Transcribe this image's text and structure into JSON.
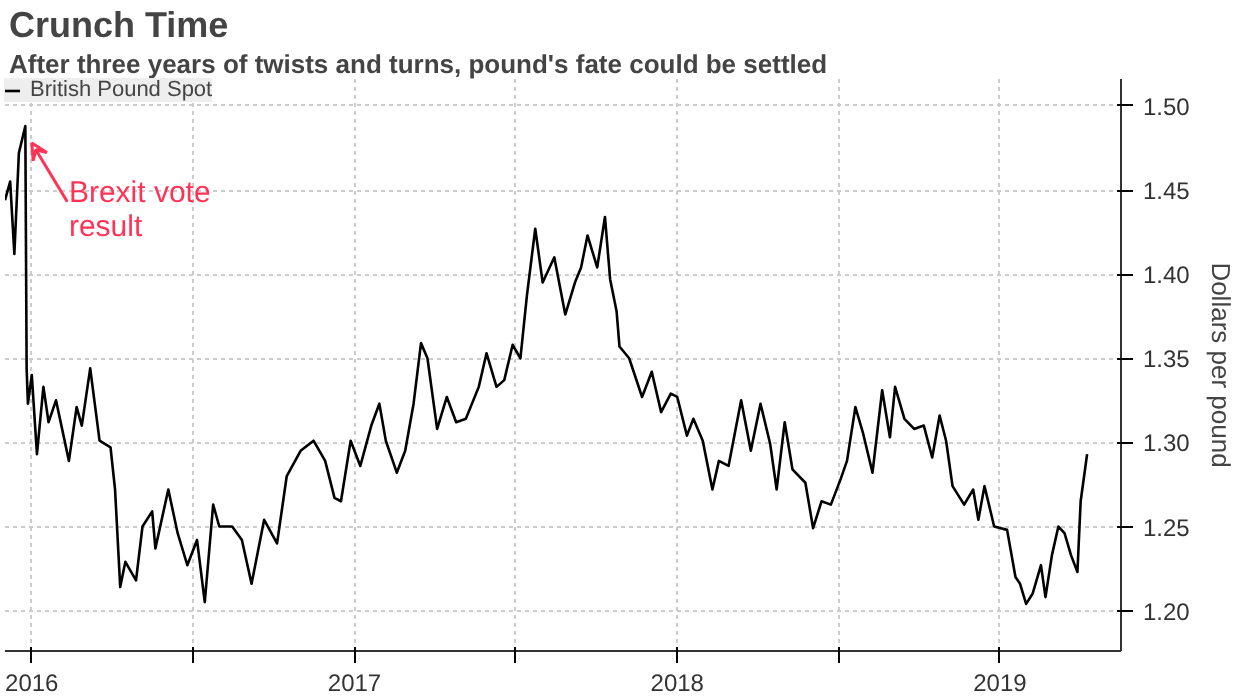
{
  "chart_data": {
    "type": "line",
    "title": "Crunch Time",
    "subtitle": "After three years of twists and turns, pound's fate could be settled",
    "ylabel": "Dollars per pound",
    "xlim": [
      2016.417,
      2019.875
    ],
    "ylim": [
      1.176,
      1.516
    ],
    "xticks": [
      {
        "value": 2016.5,
        "label": "2016"
      },
      {
        "value": 2017,
        "label": null
      },
      {
        "value": 2017.5,
        "label": "2017"
      },
      {
        "value": 2018,
        "label": null
      },
      {
        "value": 2018.5,
        "label": "2018"
      },
      {
        "value": 2019,
        "label": null
      },
      {
        "value": 2019.5,
        "label": "2019"
      }
    ],
    "yticks": [
      {
        "value": 1.2,
        "label": "1.20"
      },
      {
        "value": 1.25,
        "label": "1.25"
      },
      {
        "value": 1.3,
        "label": "1.30"
      },
      {
        "value": 1.35,
        "label": "1.35"
      },
      {
        "value": 1.4,
        "label": "1.40"
      },
      {
        "value": 1.45,
        "label": "1.45"
      },
      {
        "value": 1.5,
        "label": "1.50"
      }
    ],
    "grid": true,
    "legend": "top left",
    "annotations": [
      {
        "text": "Brexit vote result",
        "x": 2016.48,
        "y": 1.488
      }
    ],
    "series": [
      {
        "name": "British Pound Spot",
        "color": "#000000",
        "x": [
          2016.417,
          2016.433,
          2016.446,
          2016.46,
          2016.48,
          2016.484,
          2016.488,
          2016.5,
          2016.516,
          2016.536,
          2016.552,
          2016.575,
          2016.615,
          2016.639,
          2016.655,
          2016.681,
          2016.71,
          2016.744,
          2016.758,
          2016.774,
          2016.79,
          2016.823,
          2016.843,
          2016.873,
          2016.883,
          2016.923,
          2016.952,
          2016.982,
          2017.012,
          2017.036,
          2017.062,
          2017.081,
          2017.121,
          2017.151,
          2017.181,
          2017.22,
          2017.26,
          2017.29,
          2017.333,
          2017.373,
          2017.409,
          2017.438,
          2017.458,
          2017.488,
          2017.518,
          2017.552,
          2017.577,
          2017.597,
          2017.631,
          2017.657,
          2017.683,
          2017.706,
          2017.726,
          2017.756,
          2017.786,
          2017.815,
          2017.845,
          2017.885,
          2017.909,
          2017.94,
          2017.964,
          2017.99,
          2018.014,
          2018.034,
          2018.06,
          2018.083,
          2018.119,
          2018.153,
          2018.183,
          2018.202,
          2018.222,
          2018.252,
          2018.276,
          2018.292,
          2018.312,
          2018.321,
          2018.351,
          2018.391,
          2018.421,
          2018.45,
          2018.48,
          2018.5,
          2018.53,
          2018.55,
          2018.579,
          2018.609,
          2018.629,
          2018.659,
          2018.698,
          2018.728,
          2018.758,
          2018.788,
          2018.808,
          2018.833,
          2018.857,
          2018.897,
          2018.921,
          2018.947,
          2018.976,
          2019.006,
          2019.026,
          2019.052,
          2019.075,
          2019.105,
          2019.135,
          2019.159,
          2019.175,
          2019.204,
          2019.234,
          2019.264,
          2019.29,
          2019.313,
          2019.333,
          2019.353,
          2019.389,
          2019.417,
          2019.433,
          2019.452,
          2019.482,
          2019.522,
          2019.548,
          2019.562,
          2019.581,
          2019.601,
          2019.627,
          2019.641,
          2019.661,
          2019.681,
          2019.7,
          2019.72,
          2019.74,
          2019.75,
          2019.77
        ],
        "values": [
          1.444,
          1.455,
          1.412,
          1.472,
          1.488,
          1.344,
          1.323,
          1.34,
          1.293,
          1.333,
          1.312,
          1.325,
          1.289,
          1.321,
          1.31,
          1.344,
          1.301,
          1.297,
          1.272,
          1.214,
          1.229,
          1.218,
          1.25,
          1.259,
          1.237,
          1.272,
          1.246,
          1.227,
          1.242,
          1.205,
          1.263,
          1.25,
          1.25,
          1.242,
          1.216,
          1.254,
          1.24,
          1.28,
          1.295,
          1.301,
          1.289,
          1.267,
          1.265,
          1.301,
          1.286,
          1.31,
          1.323,
          1.301,
          1.282,
          1.295,
          1.323,
          1.359,
          1.35,
          1.308,
          1.327,
          1.312,
          1.314,
          1.333,
          1.353,
          1.333,
          1.337,
          1.358,
          1.35,
          1.387,
          1.427,
          1.395,
          1.41,
          1.376,
          1.395,
          1.404,
          1.423,
          1.404,
          1.434,
          1.397,
          1.378,
          1.357,
          1.35,
          1.327,
          1.342,
          1.318,
          1.329,
          1.327,
          1.304,
          1.314,
          1.301,
          1.272,
          1.289,
          1.286,
          1.325,
          1.295,
          1.323,
          1.299,
          1.272,
          1.312,
          1.284,
          1.276,
          1.249,
          1.265,
          1.263,
          1.278,
          1.289,
          1.321,
          1.306,
          1.282,
          1.331,
          1.303,
          1.333,
          1.314,
          1.308,
          1.31,
          1.291,
          1.316,
          1.301,
          1.274,
          1.263,
          1.272,
          1.254,
          1.274,
          1.25,
          1.248,
          1.22,
          1.216,
          1.204,
          1.21,
          1.227,
          1.208,
          1.233,
          1.25,
          1.246,
          1.233,
          1.223,
          1.265,
          1.293
        ]
      }
    ]
  }
}
